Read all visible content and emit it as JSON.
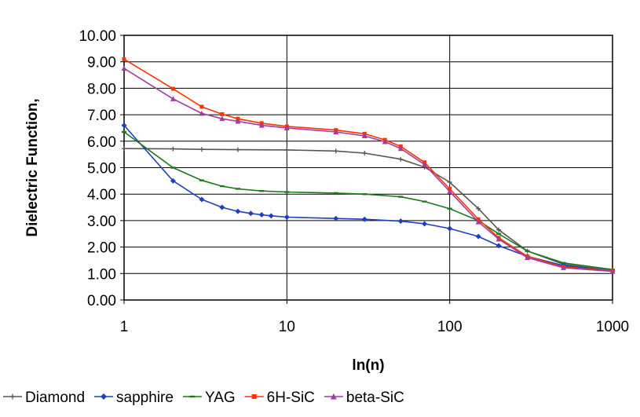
{
  "chart_data": {
    "type": "line",
    "xscale": "log",
    "xlim": [
      1,
      1000
    ],
    "ylim": [
      0,
      10
    ],
    "xticks": [
      "1",
      "10",
      "100",
      "1000"
    ],
    "yticks": [
      "0.00",
      "1.00",
      "2.00",
      "3.00",
      "4.00",
      "5.00",
      "6.00",
      "7.00",
      "8.00",
      "9.00",
      "10.00"
    ],
    "xlabel": "ln(n)",
    "ylabel": "Dielectric Function,",
    "grid": "major gridlines on",
    "legend_position": "bottom",
    "series": [
      {
        "name": "Diamond",
        "color": "#555555",
        "marker": "plus",
        "x": [
          1,
          2,
          3,
          5,
          10,
          20,
          30,
          50,
          70,
          100,
          150,
          200,
          300,
          500,
          1000
        ],
        "y": [
          5.72,
          5.71,
          5.69,
          5.68,
          5.67,
          5.63,
          5.55,
          5.32,
          5.02,
          4.45,
          3.45,
          2.65,
          1.85,
          1.35,
          1.1
        ]
      },
      {
        "name": "sapphire",
        "color": "#1f3fbf",
        "marker": "diamond",
        "x": [
          1,
          2,
          3,
          4,
          5,
          6,
          7,
          8,
          10,
          20,
          30,
          50,
          70,
          100,
          150,
          200,
          300,
          500,
          1000
        ],
        "y": [
          6.6,
          4.5,
          3.8,
          3.5,
          3.35,
          3.27,
          3.22,
          3.18,
          3.13,
          3.08,
          3.05,
          2.98,
          2.88,
          2.7,
          2.4,
          2.05,
          1.65,
          1.3,
          1.1
        ]
      },
      {
        "name": "YAG",
        "color": "#1a7a1a",
        "marker": "dash",
        "x": [
          1,
          2,
          3,
          4,
          5,
          7,
          10,
          20,
          30,
          50,
          70,
          100,
          150,
          200,
          300,
          500,
          1000
        ],
        "y": [
          6.35,
          5.0,
          4.52,
          4.3,
          4.2,
          4.12,
          4.08,
          4.04,
          4.0,
          3.9,
          3.72,
          3.45,
          3.0,
          2.5,
          1.85,
          1.4,
          1.15
        ]
      },
      {
        "name": "6H-SiC",
        "color": "#ff3300",
        "marker": "square",
        "x": [
          1,
          2,
          3,
          4,
          5,
          7,
          10,
          20,
          30,
          40,
          50,
          70,
          100,
          150,
          200,
          300,
          500,
          1000
        ],
        "y": [
          9.1,
          7.98,
          7.3,
          7.02,
          6.85,
          6.68,
          6.56,
          6.42,
          6.28,
          6.05,
          5.8,
          5.2,
          4.2,
          3.05,
          2.35,
          1.65,
          1.25,
          1.1
        ]
      },
      {
        "name": "beta-SiC",
        "color": "#a13ca1",
        "marker": "triangle",
        "x": [
          1,
          2,
          3,
          4,
          5,
          7,
          10,
          20,
          30,
          40,
          50,
          70,
          100,
          150,
          200,
          300,
          500,
          1000
        ],
        "y": [
          8.75,
          7.6,
          7.05,
          6.85,
          6.75,
          6.6,
          6.5,
          6.35,
          6.2,
          5.98,
          5.72,
          5.12,
          4.1,
          2.95,
          2.3,
          1.6,
          1.22,
          1.08
        ]
      }
    ]
  }
}
